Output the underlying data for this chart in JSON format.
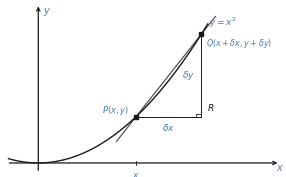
{
  "bg_color": "#ffffff",
  "curve_color": "#1a1a1a",
  "secant_color": "#4a4a4a",
  "axis_color": "#1a1a1a",
  "label_color": "#4a7ab5",
  "annotation_color": "#1a1a1a",
  "P_x": 1.05,
  "Q_x": 1.75,
  "xlim": [
    -0.35,
    2.6
  ],
  "ylim": [
    -0.25,
    3.8
  ],
  "curve_xmin": -0.32,
  "curve_xmax": 1.82
}
